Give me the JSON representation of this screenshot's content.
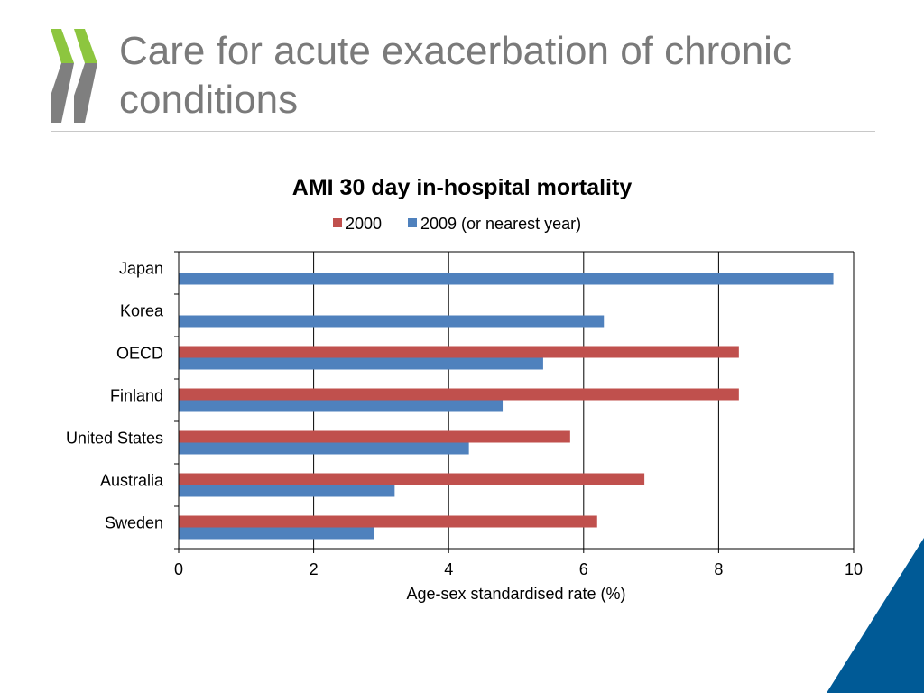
{
  "slide": {
    "title": "Care for acute exacerbation of chronic conditions"
  },
  "colors": {
    "title_text": "#7a7a7a",
    "logo_green": "#8dc63f",
    "logo_grey": "#7f7f7f",
    "corner_blue": "#005a96"
  },
  "chart_data": {
    "type": "bar",
    "orientation": "horizontal",
    "title": "AMI 30 day in-hospital mortality",
    "xlabel": "Age-sex standardised rate (%)",
    "ylabel": "",
    "xlim": [
      0,
      10
    ],
    "xticks": [
      0,
      2,
      4,
      6,
      8,
      10
    ],
    "grid": true,
    "legend_position": "top",
    "categories": [
      "Japan",
      "Korea",
      "OECD",
      "Finland",
      "United States",
      "Australia",
      "Sweden"
    ],
    "series": [
      {
        "name": "2000",
        "color": "#c0504d",
        "values": [
          null,
          null,
          8.3,
          8.3,
          5.8,
          6.9,
          6.2
        ]
      },
      {
        "name": "2009 (or nearest year)",
        "color": "#4f81bd",
        "values": [
          9.7,
          6.3,
          5.4,
          4.8,
          4.3,
          3.2,
          2.9
        ]
      }
    ]
  }
}
